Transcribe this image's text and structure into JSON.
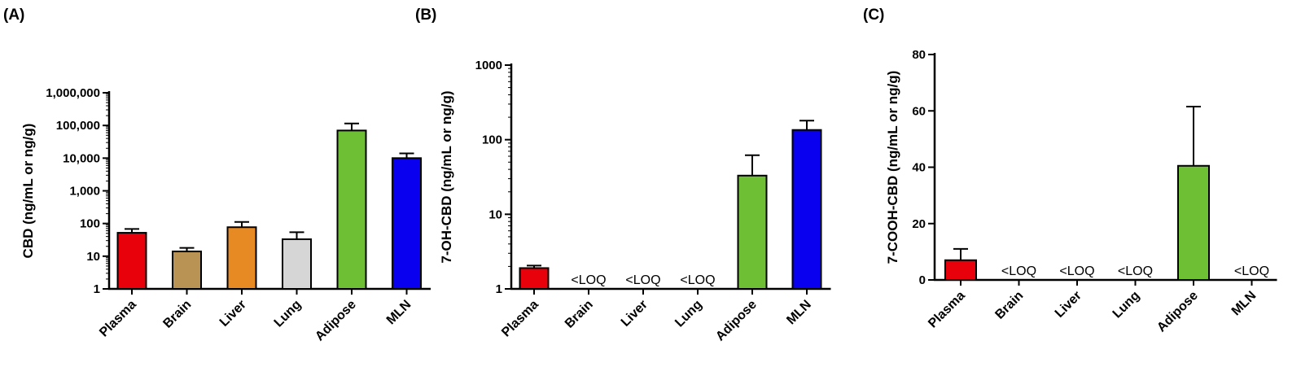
{
  "chart_data": [
    {
      "type": "bar",
      "panel_label": "(A)",
      "ylabel": "CBD (ng/mL or ng/g)",
      "yscale": "log",
      "ylim": [
        1,
        1000000
      ],
      "yticks": [
        1,
        10,
        100,
        1000,
        10000,
        100000,
        1000000
      ],
      "ytick_labels": [
        "1",
        "10",
        "100",
        "1,000",
        "10,000",
        "100,000",
        "1,000,000"
      ],
      "categories": [
        "Plasma",
        "Brain",
        "Liver",
        "Lung",
        "Adipose",
        "MLN"
      ],
      "values": [
        52,
        14,
        77,
        33,
        70000,
        10000
      ],
      "error_upper": [
        68,
        18,
        112,
        54,
        115000,
        14000
      ],
      "colors": [
        "#e8000b",
        "#b89353",
        "#e88a24",
        "#d6d6d6",
        "#6ebf33",
        "#0a00f0"
      ],
      "bar_labels": [
        "",
        "",
        "",
        "",
        "",
        ""
      ]
    },
    {
      "type": "bar",
      "panel_label": "(B)",
      "ylabel": "7-OH-CBD (ng/mL or ng/g)",
      "yscale": "log",
      "ylim": [
        1,
        1000
      ],
      "yticks": [
        1,
        10,
        100,
        1000
      ],
      "ytick_labels": [
        "1",
        "10",
        "100",
        "1000"
      ],
      "categories": [
        "Plasma",
        "Brain",
        "Liver",
        "Lung",
        "Adipose",
        "MLN"
      ],
      "values": [
        1.9,
        null,
        null,
        null,
        33,
        135
      ],
      "error_upper": [
        2.05,
        null,
        null,
        null,
        62,
        180
      ],
      "colors": [
        "#e8000b",
        "#b89353",
        "#e88a24",
        "#d6d6d6",
        "#6ebf33",
        "#0a00f0"
      ],
      "bar_labels": [
        "",
        "<LOQ",
        "<LOQ",
        "<LOQ",
        "",
        ""
      ]
    },
    {
      "type": "bar",
      "panel_label": "(C)",
      "ylabel": "7-COOH-CBD (ng/mL or ng/g)",
      "yscale": "linear",
      "ylim": [
        0,
        80
      ],
      "yticks": [
        0,
        20,
        40,
        60,
        80
      ],
      "ytick_labels": [
        "0",
        "20",
        "40",
        "60",
        "80"
      ],
      "categories": [
        "Plasma",
        "Brain",
        "Liver",
        "Lung",
        "Adipose",
        "MLN"
      ],
      "values": [
        7,
        null,
        null,
        null,
        40.5,
        null
      ],
      "error_upper": [
        11,
        null,
        null,
        null,
        61.5,
        null
      ],
      "colors": [
        "#e8000b",
        "#b89353",
        "#e88a24",
        "#d6d6d6",
        "#6ebf33",
        "#0a00f0"
      ],
      "bar_labels": [
        "",
        "<LOQ",
        "<LOQ",
        "<LOQ",
        "",
        "<LOQ"
      ]
    }
  ]
}
